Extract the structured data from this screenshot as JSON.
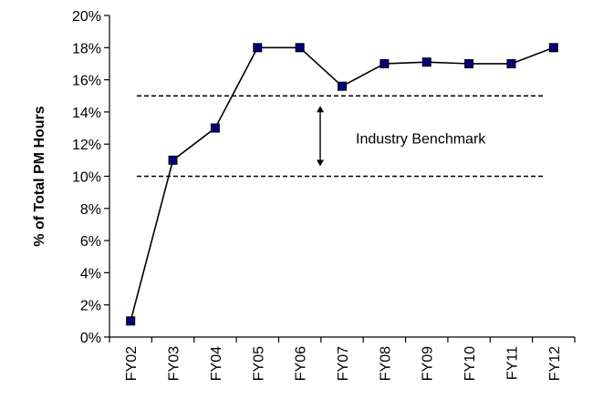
{
  "chart_data": {
    "type": "line",
    "title": "",
    "xlabel": "",
    "ylabel": "% of Total PM Hours",
    "categories": [
      "FY02",
      "FY03",
      "FY04",
      "FY05",
      "FY06",
      "FY07",
      "FY08",
      "FY09",
      "FY10",
      "FY11",
      "FY12"
    ],
    "series": [
      {
        "values": [
          1,
          11,
          13,
          18,
          18,
          15.6,
          17,
          17.1,
          17,
          17,
          18
        ]
      }
    ],
    "ylim": [
      0,
      20
    ],
    "ytick_step": 2,
    "ytick_labels": [
      "0%",
      "2%",
      "4%",
      "6%",
      "8%",
      "10%",
      "12%",
      "14%",
      "16%",
      "18%",
      "20%"
    ],
    "grid": false,
    "legend": "none",
    "benchmark": {
      "label": "Industry Benchmark",
      "lower": 10,
      "upper": 15
    },
    "colors": {
      "line": "#000000",
      "marker_fill": "#000080",
      "marker_stroke": "#000000"
    }
  }
}
